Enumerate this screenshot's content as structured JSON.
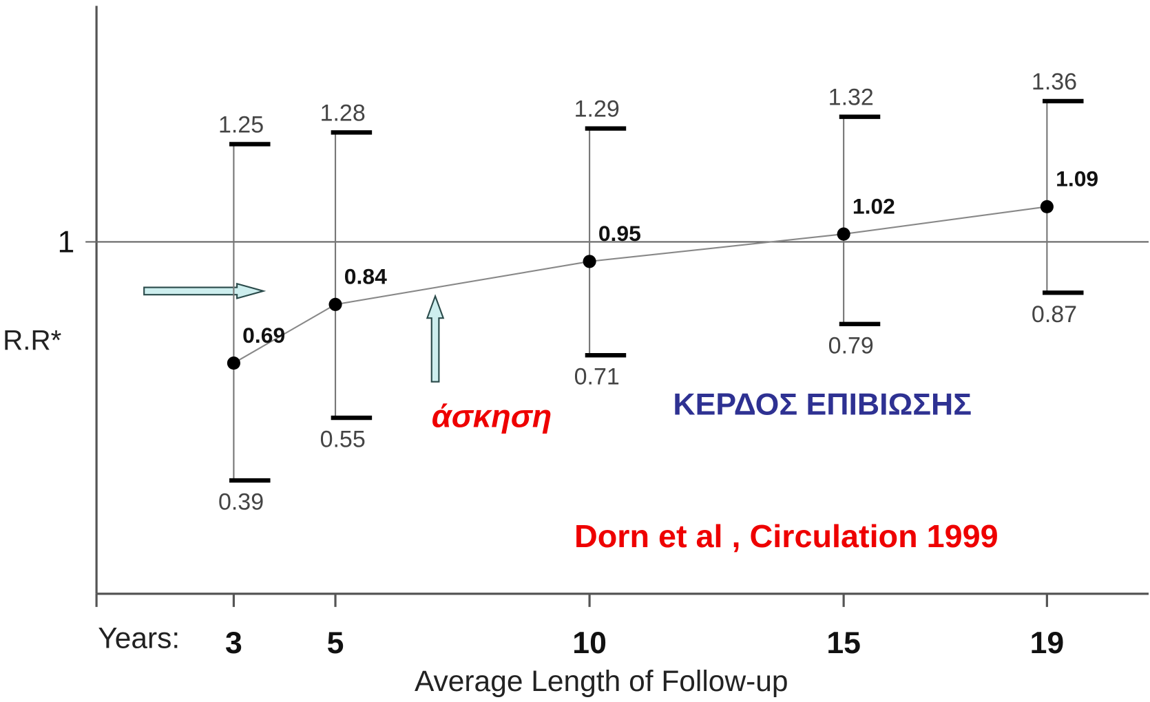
{
  "chart_data": {
    "type": "errorbar",
    "x": [
      3,
      5,
      10,
      15,
      19
    ],
    "values": [
      0.69,
      0.84,
      0.95,
      1.02,
      1.09
    ],
    "lower": [
      0.39,
      0.55,
      0.71,
      0.79,
      0.87
    ],
    "upper": [
      1.25,
      1.28,
      1.29,
      1.32,
      1.36
    ],
    "xlim": [
      0.3,
      21
    ],
    "xticks": [
      3,
      5,
      10,
      15,
      19
    ],
    "ylim": [
      0.1,
      1.6
    ],
    "yticks": [
      1
    ],
    "grid": true,
    "color": "#000000",
    "y_label": "R.R*",
    "x_prefix": "Years:",
    "x_label": "Average Length of Follow-up",
    "annotations": [
      "άσκηση",
      "ΚΕΡΔΟΣ ΕΠΙΒΙΩΣΗΣ",
      "Dorn et al , Circulation 1999"
    ]
  }
}
